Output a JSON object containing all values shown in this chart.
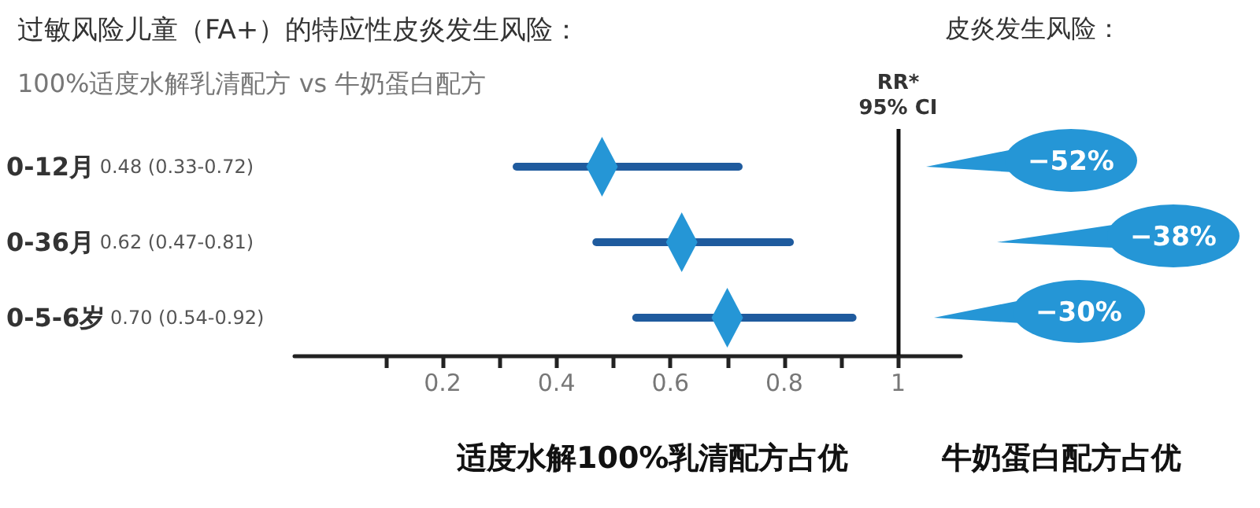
{
  "chart_data": {
    "type": "scatter",
    "title": "过敏风险儿童（FA+）的特应性皮炎发生风险：",
    "subtitle": "100%适度水解乳清配方 vs 牛奶蛋白配方",
    "categories": [
      "0-12月",
      "0-36月",
      "0-5-6岁"
    ],
    "values": [
      0.48,
      0.62,
      0.7
    ],
    "errors": [
      [
        0.33,
        0.72
      ],
      [
        0.47,
        0.81
      ],
      [
        0.54,
        0.92
      ]
    ],
    "color": "#2596d6",
    "marker": "diamond",
    "orientation": "horizontal",
    "xlim": [
      -0.06,
      1.11
    ],
    "xticks": [
      {
        "value": 0.1,
        "label": null
      },
      0.2,
      {
        "value": 0.3,
        "label": null
      },
      0.4,
      {
        "value": 0.5,
        "label": null
      },
      0.6,
      {
        "value": 0.7,
        "label": null
      },
      0.8,
      {
        "value": 0.9,
        "label": null
      },
      1
    ],
    "ref_lines": [
      {
        "axis": "x",
        "value": 1,
        "label": "RR*\n95% CI"
      }
    ],
    "annotations": [
      "0.48 (0.33-0.72)",
      "0.62 (0.47-0.81)",
      "0.70 (0.54-0.92)",
      "−52%",
      "−38%",
      "−30%",
      "皮炎发生风险：",
      "适度水解100%乳清配方占优",
      "牛奶蛋白配方占优"
    ],
    "grid": false
  }
}
